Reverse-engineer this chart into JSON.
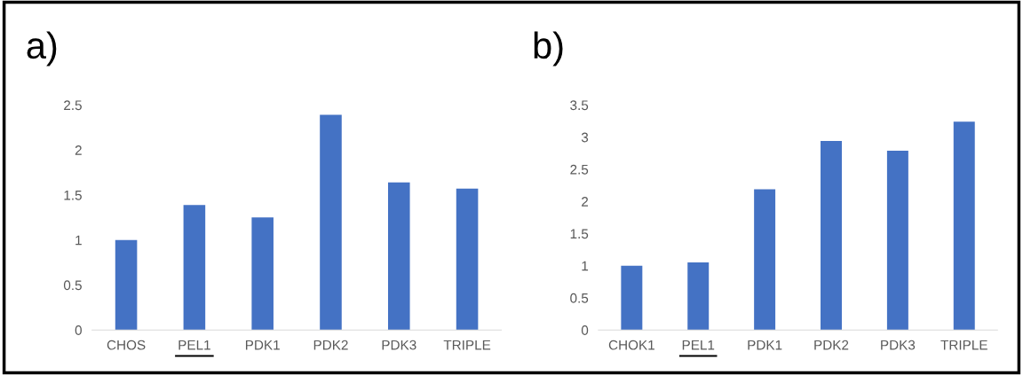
{
  "chart_data": [
    {
      "type": "bar",
      "title": "a)",
      "categories": [
        "CHOS",
        "PEL1",
        "PDK1",
        "PDK2",
        "PDK3",
        "TRIPLE"
      ],
      "values": [
        1.0,
        1.39,
        1.25,
        2.39,
        1.64,
        1.57
      ],
      "color": "#4472c4",
      "ylim": [
        0,
        2.5
      ],
      "yticks": [
        0,
        {
          "value": 0.5,
          "label": "0.5"
        },
        1,
        {
          "value": 1.5,
          "label": "1.5"
        },
        2,
        {
          "value": 2.5,
          "label": "2.5"
        }
      ],
      "grid": false,
      "legend": false
    },
    {
      "type": "bar",
      "title": "b)",
      "categories": [
        "CHOK1",
        "PEL1",
        "PDK1",
        "PDK2",
        "PDK3",
        "TRIPLE"
      ],
      "values": [
        1.0,
        1.05,
        2.19,
        2.94,
        2.79,
        3.24
      ],
      "color": "#4472c4",
      "ylim": [
        0,
        3.5
      ],
      "yticks": [
        0,
        {
          "value": 0.5,
          "label": "0.5"
        },
        1,
        {
          "value": 1.5,
          "label": "1.5"
        },
        2,
        {
          "value": 2.5,
          "label": "2.5"
        },
        3,
        {
          "value": 3.5,
          "label": "3.5"
        }
      ],
      "grid": false,
      "legend": false
    }
  ]
}
